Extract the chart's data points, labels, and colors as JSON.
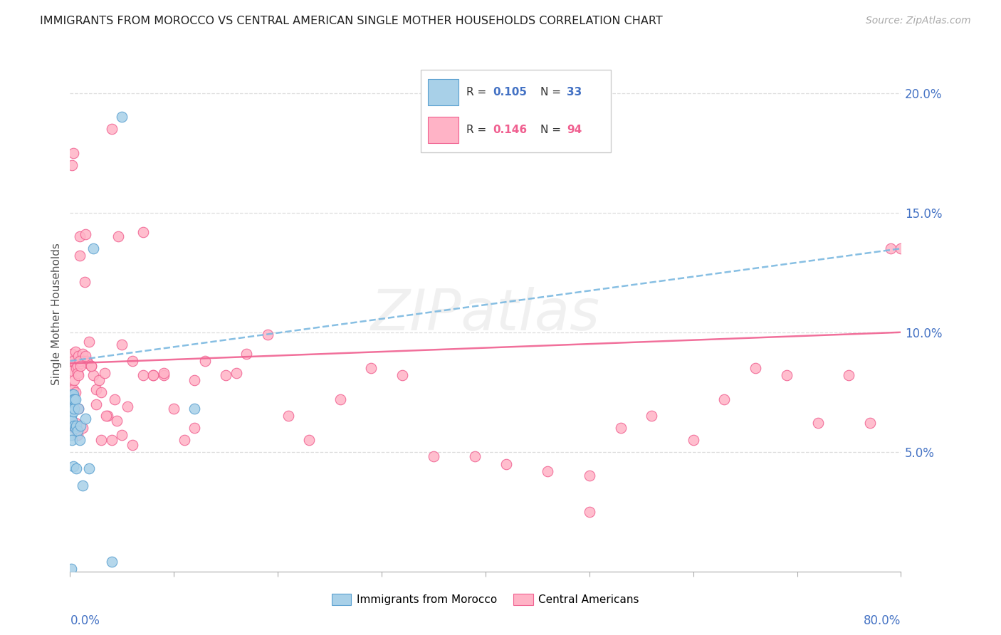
{
  "title": "IMMIGRANTS FROM MOROCCO VS CENTRAL AMERICAN SINGLE MOTHER HOUSEHOLDS CORRELATION CHART",
  "source": "Source: ZipAtlas.com",
  "ylabel": "Single Mother Households",
  "color_morocco": "#a8d0e8",
  "color_central": "#ffb3c6",
  "color_morocco_edge": "#5aa0d0",
  "color_central_edge": "#f06090",
  "color_morocco_line": "#7ab8e0",
  "color_central_line": "#f06090",
  "color_axis_labels": "#4472C4",
  "background": "#ffffff",
  "xlim": [
    0.0,
    0.8
  ],
  "ylim": [
    0.0,
    0.215
  ],
  "morocco_line_x0": 0.0,
  "morocco_line_x1": 0.8,
  "morocco_line_y0": 0.088,
  "morocco_line_y1": 0.135,
  "central_line_x0": 0.0,
  "central_line_x1": 0.8,
  "central_line_y0": 0.087,
  "central_line_y1": 0.1,
  "morocco_x": [
    0.001,
    0.001,
    0.001,
    0.001,
    0.001,
    0.002,
    0.002,
    0.002,
    0.002,
    0.002,
    0.003,
    0.003,
    0.003,
    0.003,
    0.003,
    0.004,
    0.004,
    0.004,
    0.005,
    0.005,
    0.006,
    0.006,
    0.007,
    0.008,
    0.009,
    0.01,
    0.012,
    0.015,
    0.018,
    0.022,
    0.04,
    0.05,
    0.12
  ],
  "morocco_y": [
    0.001,
    0.065,
    0.072,
    0.057,
    0.068,
    0.072,
    0.074,
    0.063,
    0.068,
    0.055,
    0.073,
    0.067,
    0.074,
    0.072,
    0.044,
    0.072,
    0.061,
    0.068,
    0.072,
    0.06,
    0.061,
    0.043,
    0.059,
    0.068,
    0.055,
    0.061,
    0.036,
    0.064,
    0.043,
    0.135,
    0.004,
    0.19,
    0.068
  ],
  "central_x": [
    0.001,
    0.001,
    0.002,
    0.002,
    0.003,
    0.003,
    0.004,
    0.005,
    0.005,
    0.006,
    0.007,
    0.007,
    0.008,
    0.008,
    0.009,
    0.009,
    0.01,
    0.011,
    0.012,
    0.013,
    0.014,
    0.015,
    0.016,
    0.017,
    0.018,
    0.02,
    0.022,
    0.025,
    0.028,
    0.03,
    0.033,
    0.036,
    0.04,
    0.043,
    0.046,
    0.05,
    0.055,
    0.06,
    0.07,
    0.08,
    0.09,
    0.1,
    0.11,
    0.12,
    0.13,
    0.15,
    0.16,
    0.17,
    0.19,
    0.21,
    0.23,
    0.26,
    0.29,
    0.32,
    0.35,
    0.39,
    0.42,
    0.46,
    0.5,
    0.53,
    0.56,
    0.6,
    0.63,
    0.66,
    0.69,
    0.72,
    0.75,
    0.77,
    0.79,
    0.8,
    0.002,
    0.003,
    0.004,
    0.005,
    0.006,
    0.007,
    0.008,
    0.009,
    0.01,
    0.012,
    0.015,
    0.02,
    0.025,
    0.03,
    0.035,
    0.04,
    0.045,
    0.05,
    0.06,
    0.07,
    0.08,
    0.09,
    0.12,
    0.5
  ],
  "central_y": [
    0.088,
    0.076,
    0.091,
    0.084,
    0.088,
    0.076,
    0.08,
    0.092,
    0.075,
    0.085,
    0.086,
    0.083,
    0.09,
    0.082,
    0.14,
    0.132,
    0.088,
    0.087,
    0.091,
    0.088,
    0.121,
    0.141,
    0.088,
    0.087,
    0.096,
    0.086,
    0.082,
    0.076,
    0.08,
    0.075,
    0.083,
    0.065,
    0.185,
    0.072,
    0.14,
    0.095,
    0.069,
    0.053,
    0.142,
    0.082,
    0.082,
    0.068,
    0.055,
    0.06,
    0.088,
    0.082,
    0.083,
    0.091,
    0.099,
    0.065,
    0.055,
    0.072,
    0.085,
    0.082,
    0.048,
    0.048,
    0.045,
    0.042,
    0.04,
    0.06,
    0.065,
    0.055,
    0.072,
    0.085,
    0.082,
    0.062,
    0.082,
    0.062,
    0.135,
    0.135,
    0.17,
    0.175,
    0.06,
    0.062,
    0.06,
    0.057,
    0.068,
    0.088,
    0.086,
    0.06,
    0.09,
    0.086,
    0.07,
    0.055,
    0.065,
    0.055,
    0.063,
    0.057,
    0.088,
    0.082,
    0.082,
    0.083,
    0.08,
    0.025
  ]
}
